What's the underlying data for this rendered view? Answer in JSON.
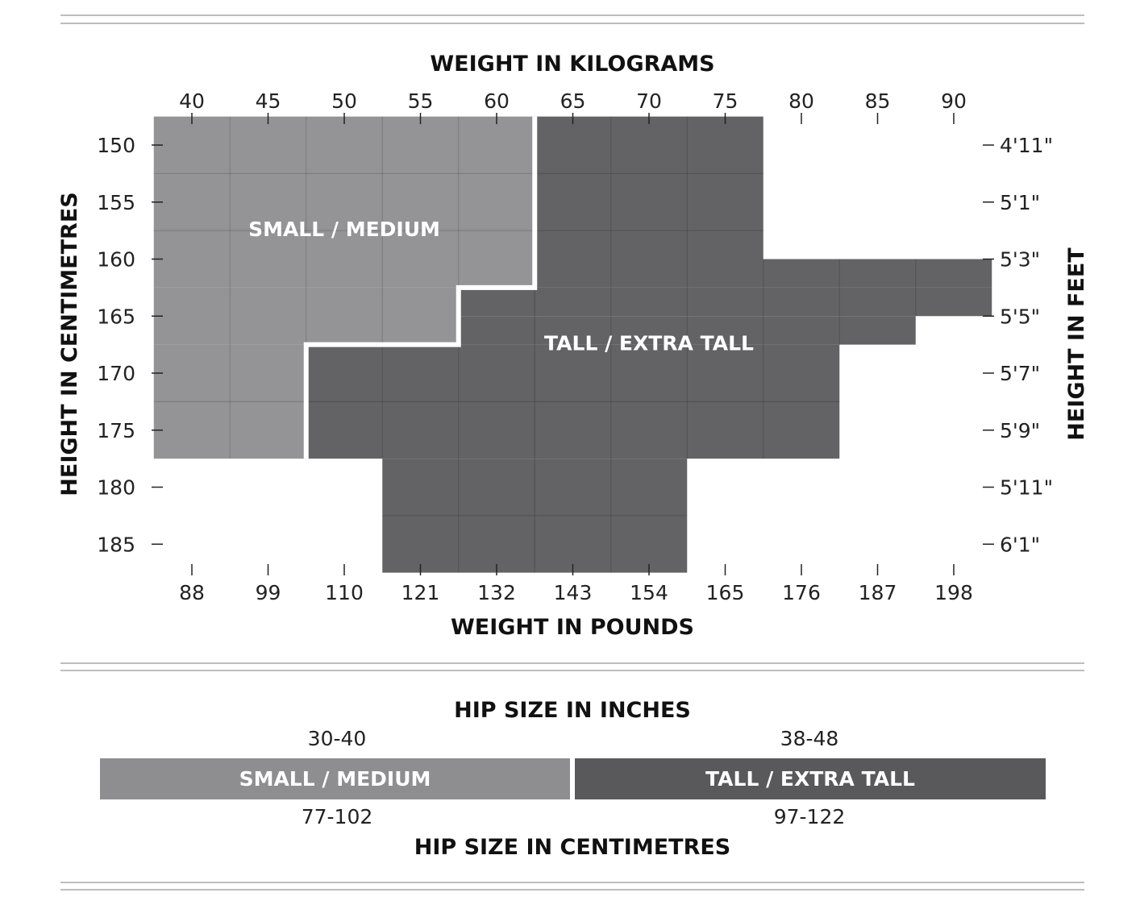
{
  "chart_data": {
    "type": "heatmap",
    "x_top": {
      "title": "WEIGHT IN KILOGRAMS",
      "ticks": [
        40,
        45,
        50,
        55,
        60,
        65,
        70,
        75,
        80,
        85,
        90
      ]
    },
    "x_bottom": {
      "title": "WEIGHT IN POUNDS",
      "ticks": [
        88,
        99,
        110,
        121,
        132,
        143,
        154,
        165,
        176,
        187,
        198
      ]
    },
    "y_left": {
      "title": "HEIGHT IN CENTIMETRES",
      "ticks": [
        150,
        155,
        160,
        165,
        170,
        175,
        180,
        185
      ]
    },
    "y_right": {
      "title": "HEIGHT IN FEET",
      "ticks": [
        "4'11\"",
        "5'1\"",
        "5'3\"",
        "5'5\"",
        "5'7\"",
        "5'9\"",
        "5'11\"",
        "6'1\""
      ]
    },
    "regions": [
      {
        "name": "SMALL / MEDIUM",
        "color": "#949497",
        "label_at_kg_cm": [
          50,
          158
        ],
        "cells_kg_cm": [
          {
            "kg": [
              37.5,
              62.5
            ],
            "cm": [
              147.5,
              162.5
            ]
          },
          {
            "kg": [
              37.5,
              57.5
            ],
            "cm": [
              162.5,
              167.5
            ]
          },
          {
            "kg": [
              37.5,
              47.5
            ],
            "cm": [
              167.5,
              177.5
            ]
          }
        ]
      },
      {
        "name": "TALL / EXTRA TALL",
        "color": "#636366",
        "label_at_kg_cm": [
          70,
          168
        ],
        "cells_kg_cm": [
          {
            "kg": [
              62.5,
              77.5
            ],
            "cm": [
              147.5,
              160.0
            ]
          },
          {
            "kg": [
              62.5,
              92.5
            ],
            "cm": [
              160.0,
              162.5
            ]
          },
          {
            "kg": [
              57.5,
              92.5
            ],
            "cm": [
              162.5,
              165.0
            ]
          },
          {
            "kg": [
              57.5,
              87.5
            ],
            "cm": [
              165.0,
              167.5
            ]
          },
          {
            "kg": [
              47.5,
              82.5
            ],
            "cm": [
              167.5,
              177.5
            ]
          },
          {
            "kg": [
              52.5,
              72.5
            ],
            "cm": [
              177.5,
              187.5
            ]
          }
        ]
      }
    ]
  },
  "hip": {
    "title_top": "HIP SIZE IN INCHES",
    "title_bottom": "HIP SIZE IN CENTIMETRES",
    "bars": [
      {
        "label": "SMALL / MEDIUM",
        "inches": "30-40",
        "cm": "77-102",
        "color": "#8e8e91"
      },
      {
        "label": "TALL / EXTRA TALL",
        "inches": "38-48",
        "cm": "97-122",
        "color": "#59595c"
      }
    ]
  }
}
